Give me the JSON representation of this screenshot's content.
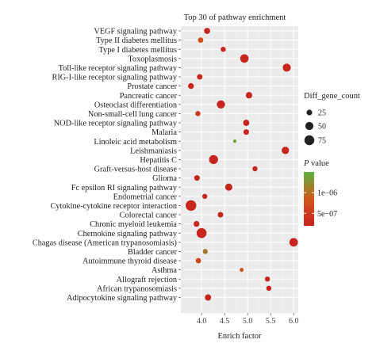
{
  "chart_data": {
    "type": "scatter",
    "title": "Top 30 of pathway enrichment",
    "xlabel": "Enrich factor",
    "ylabel": "",
    "xlim": [
      3.55,
      6.1
    ],
    "xticks": [
      4.0,
      4.5,
      5.0,
      5.5,
      6.0
    ],
    "xtick_labels": [
      "4.0",
      "4.5",
      "5.0",
      "5.5",
      "6.0"
    ],
    "grid": true,
    "background": "#ebebeb",
    "size_legend": {
      "title": "Diff_gene_count",
      "values": [
        25,
        50,
        75
      ],
      "labels": [
        "25",
        "50",
        "75"
      ]
    },
    "color_legend": {
      "title": "P value",
      "tick_labels": [
        "1e−06",
        "5e−07"
      ],
      "tick_values": [
        1e-06,
        5e-07
      ],
      "range": [
        1.5e-06,
        2e-07
      ],
      "colors": [
        "#5db33d",
        "#d1581a",
        "#c6221e"
      ]
    },
    "pathways": [
      "VEGF signaling pathway",
      "Type II diabetes mellitus",
      "Type I diabetes mellitus",
      "Toxoplasmosis",
      "Toll-like receptor signaling pathway",
      "RIG-I-like receptor signaling pathway",
      "Prostate cancer",
      "Pancreatic cancer",
      "Osteoclast differentiation",
      "Non-small-cell lung cancer",
      "NOD-like receptor signaling pathway",
      "Malaria",
      "Linoleic acid metabolism",
      "Leishmaniasis",
      "Hepatitis C",
      "Graft-versus-host disease",
      "Glioma",
      "Fc epsilon RI signaling pathway",
      "Endometrial cancer",
      "Cytokine-cytokine receptor interaction",
      "Colorectal cancer",
      "Chronic myeloid leukemia",
      "Chemokine signaling pathway",
      "Chagas disease (American trypanosomiasis)",
      "Bladder cancer",
      "Autoimmune thyroid disease",
      "Asthma",
      "Allograft rejection",
      "African trypanosomiasis",
      "Adipocytokine signaling pathway"
    ],
    "points": [
      {
        "pathway": "VEGF signaling pathway",
        "x": 4.12,
        "count": 28,
        "p": 2.5e-07
      },
      {
        "pathway": "Type II diabetes mellitus",
        "x": 3.98,
        "count": 22,
        "p": 7.5e-07
      },
      {
        "pathway": "Type I diabetes mellitus",
        "x": 4.47,
        "count": 20,
        "p": 2.5e-07
      },
      {
        "pathway": "Toxoplasmosis",
        "x": 4.93,
        "count": 55,
        "p": 2.5e-07
      },
      {
        "pathway": "Toll-like receptor signaling pathway",
        "x": 5.85,
        "count": 50,
        "p": 2.5e-07
      },
      {
        "pathway": "RIG-I-like receptor signaling pathway",
        "x": 3.96,
        "count": 24,
        "p": 2.5e-07
      },
      {
        "pathway": "Prostate cancer",
        "x": 3.77,
        "count": 26,
        "p": 2.5e-07
      },
      {
        "pathway": "Pancreatic cancer",
        "x": 5.03,
        "count": 32,
        "p": 2.5e-07
      },
      {
        "pathway": "Osteoclast differentiation",
        "x": 4.42,
        "count": 52,
        "p": 2.5e-07
      },
      {
        "pathway": "Non-small-cell lung cancer",
        "x": 3.92,
        "count": 20,
        "p": 5e-07
      },
      {
        "pathway": "NOD-like receptor signaling pathway",
        "x": 4.97,
        "count": 30,
        "p": 2.5e-07
      },
      {
        "pathway": "Malaria",
        "x": 4.97,
        "count": 24,
        "p": 2.5e-07
      },
      {
        "pathway": "Linoleic acid metabolism",
        "x": 4.72,
        "count": 9,
        "p": 1.4e-06
      },
      {
        "pathway": "Leishmaniasis",
        "x": 5.82,
        "count": 42,
        "p": 2.5e-07
      },
      {
        "pathway": "Hepatitis C",
        "x": 4.26,
        "count": 62,
        "p": 2.5e-07
      },
      {
        "pathway": "Graft-versus-host disease",
        "x": 5.16,
        "count": 20,
        "p": 2.5e-07
      },
      {
        "pathway": "Glioma",
        "x": 3.9,
        "count": 24,
        "p": 2.5e-07
      },
      {
        "pathway": "Fc epsilon RI signaling pathway",
        "x": 4.59,
        "count": 40,
        "p": 2.5e-07
      },
      {
        "pathway": "Endometrial cancer",
        "x": 4.07,
        "count": 20,
        "p": 2.5e-07
      },
      {
        "pathway": "Cytokine-cytokine receptor interaction",
        "x": 3.77,
        "count": 86,
        "p": 2.5e-07
      },
      {
        "pathway": "Colorectal cancer",
        "x": 4.41,
        "count": 24,
        "p": 2.5e-07
      },
      {
        "pathway": "Chronic myeloid leukemia",
        "x": 3.89,
        "count": 26,
        "p": 2.5e-07
      },
      {
        "pathway": "Chemokine signaling pathway",
        "x": 4.0,
        "count": 76,
        "p": 2.5e-07
      },
      {
        "pathway": "Chagas disease (American trypanosomiasis)",
        "x": 6.0,
        "count": 56,
        "p": 2.5e-07
      },
      {
        "pathway": "Bladder cancer",
        "x": 4.08,
        "count": 20,
        "p": 1.1e-06
      },
      {
        "pathway": "Autoimmune thyroid disease",
        "x": 3.93,
        "count": 22,
        "p": 6.5e-07
      },
      {
        "pathway": "Asthma",
        "x": 4.87,
        "count": 12,
        "p": 7.5e-07
      },
      {
        "pathway": "Allograft rejection",
        "x": 5.43,
        "count": 20,
        "p": 2.5e-07
      },
      {
        "pathway": "African trypanosomiasis",
        "x": 5.46,
        "count": 20,
        "p": 2.5e-07
      },
      {
        "pathway": "Adipocytokine signaling pathway",
        "x": 4.14,
        "count": 30,
        "p": 2.5e-07
      }
    ]
  }
}
